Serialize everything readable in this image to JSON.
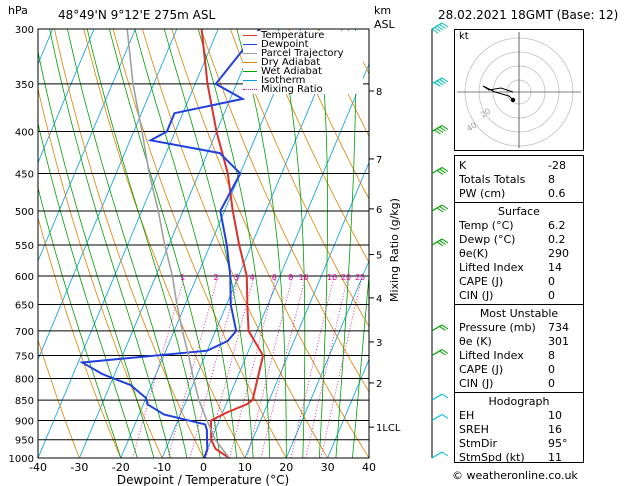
{
  "header": {
    "hpa_label": "hPa",
    "location": "48°49'N  9°12'E  275m  ASL",
    "km_label": "km",
    "asl_label": "ASL",
    "datetime": "28.02.2021  18GMT  (Base: 12)"
  },
  "axes": {
    "xlabel": "Dewpoint / Temperature (°C)",
    "x_ticks": [
      "-40",
      "-30",
      "-20",
      "-10",
      "0",
      "10",
      "20",
      "30",
      "40"
    ],
    "pressure_ticks": [
      "300",
      "350",
      "400",
      "450",
      "500",
      "550",
      "600",
      "650",
      "700",
      "750",
      "800",
      "850",
      "900",
      "950",
      "1000"
    ],
    "km_ticks": [
      "8",
      "7",
      "6",
      "5",
      "4",
      "3",
      "2",
      "1LCL"
    ],
    "mixing_ratio_label": "Mixing Ratio (g/kg)",
    "mixing_ratio_ticks": [
      "1",
      "2",
      "3",
      "4",
      "6",
      "8",
      "10",
      "16",
      "20",
      "25"
    ]
  },
  "legend": [
    {
      "label": "Temperature",
      "color": "#e0302d"
    },
    {
      "label": "Dewpoint",
      "color": "#2040e0"
    },
    {
      "label": "Parcel Trajectory",
      "color": "#a0a0a0"
    },
    {
      "label": "Dry Adiabat",
      "color": "#e08000"
    },
    {
      "label": "Wet Adiabat",
      "color": "#00a000"
    },
    {
      "label": "Isotherm",
      "color": "#00a0e0"
    },
    {
      "label": "Mixing Ratio",
      "color": "#e000a0"
    }
  ],
  "hodograph": {
    "unit_label": "kt",
    "ring_labels": [
      "40",
      "20"
    ]
  },
  "indices": [
    {
      "label": "K",
      "value": "-28"
    },
    {
      "label": "Totals Totals",
      "value": "8"
    },
    {
      "label": "PW (cm)",
      "value": "0.6"
    }
  ],
  "surface": {
    "title": "Surface",
    "rows": [
      {
        "label": "Temp (°C)",
        "value": "6.2"
      },
      {
        "label": "Dewp (°C)",
        "value": "0.2"
      },
      {
        "label": "θe(K)",
        "value": "290"
      },
      {
        "label": "Lifted Index",
        "value": "14"
      },
      {
        "label": "CAPE (J)",
        "value": "0"
      },
      {
        "label": "CIN (J)",
        "value": "0"
      }
    ]
  },
  "most_unstable": {
    "title": "Most Unstable",
    "rows": [
      {
        "label": "Pressure (mb)",
        "value": "734"
      },
      {
        "label": "θe (K)",
        "value": "301"
      },
      {
        "label": "Lifted Index",
        "value": "8"
      },
      {
        "label": "CAPE (J)",
        "value": "0"
      },
      {
        "label": "CIN (J)",
        "value": "0"
      }
    ]
  },
  "hodograph_table": {
    "title": "Hodograph",
    "rows": [
      {
        "label": "EH",
        "value": "10"
      },
      {
        "label": "SREH",
        "value": "16"
      },
      {
        "label": "StmDir",
        "value": "95°"
      },
      {
        "label": "StmSpd (kt)",
        "value": "11"
      }
    ]
  },
  "copyright": "© weatheronline.co.uk",
  "colors": {
    "temperature": "#e0302d",
    "dewpoint": "#2040e0",
    "parcel": "#a0a0a0",
    "dry_adiabat": "#e08000",
    "wet_adiabat": "#00a000",
    "isotherm": "#00a0e0",
    "mixing_ratio": "#e000a0"
  },
  "chart_data": {
    "type": "line",
    "title": "48°49'N  9°12'E  275m  ASL",
    "xlabel": "Dewpoint / Temperature (°C)",
    "ylabel": "hPa",
    "xlim": [
      -40,
      40
    ],
    "ylim": [
      1000,
      300
    ],
    "y_scale": "log",
    "series": [
      {
        "name": "Temperature",
        "pressure": [
          1000,
          975,
          950,
          925,
          900,
          880,
          860,
          850,
          800,
          750,
          700,
          650,
          600,
          550,
          500,
          450,
          400,
          350,
          300
        ],
        "values": [
          6.2,
          2,
          0,
          -1,
          -2,
          1,
          5,
          6,
          5,
          4,
          -2,
          -5,
          -8,
          -13,
          -18,
          -23,
          -30,
          -37,
          -44
        ]
      },
      {
        "name": "Dewpoint",
        "pressure": [
          1000,
          975,
          950,
          925,
          910,
          885,
          860,
          845,
          815,
          790,
          765,
          740,
          720,
          700,
          650,
          600,
          550,
          500,
          450,
          425,
          410,
          400,
          380,
          365,
          350,
          300
        ],
        "values": [
          0.2,
          0,
          -1,
          -2,
          -3,
          -14,
          -19,
          -20,
          -25,
          -33,
          -39,
          -10,
          -6,
          -5,
          -9,
          -12,
          -16,
          -21,
          -20,
          -27,
          -45,
          -42,
          -42,
          -27,
          -35,
          -30
        ]
      },
      {
        "name": "Parcel Trajectory",
        "pressure": [
          1000,
          950,
          900,
          850,
          800,
          750,
          700,
          650,
          600,
          550,
          500,
          450,
          400,
          350,
          300
        ],
        "values": [
          6.2,
          1,
          -3,
          -7,
          -10.5,
          -14,
          -18,
          -22,
          -26,
          -31,
          -36,
          -42,
          -48,
          -55,
          -62
        ]
      }
    ],
    "wind_barbs_kt": [
      {
        "p": 300,
        "spd": 45
      },
      {
        "p": 350,
        "spd": 40
      },
      {
        "p": 400,
        "spd": 35
      },
      {
        "p": 450,
        "spd": 30
      },
      {
        "p": 500,
        "spd": 30
      },
      {
        "p": 550,
        "spd": 25
      },
      {
        "p": 700,
        "spd": 20
      },
      {
        "p": 750,
        "spd": 15
      },
      {
        "p": 850,
        "spd": 10
      },
      {
        "p": 900,
        "spd": 10
      },
      {
        "p": 1000,
        "spd": 5
      }
    ]
  }
}
